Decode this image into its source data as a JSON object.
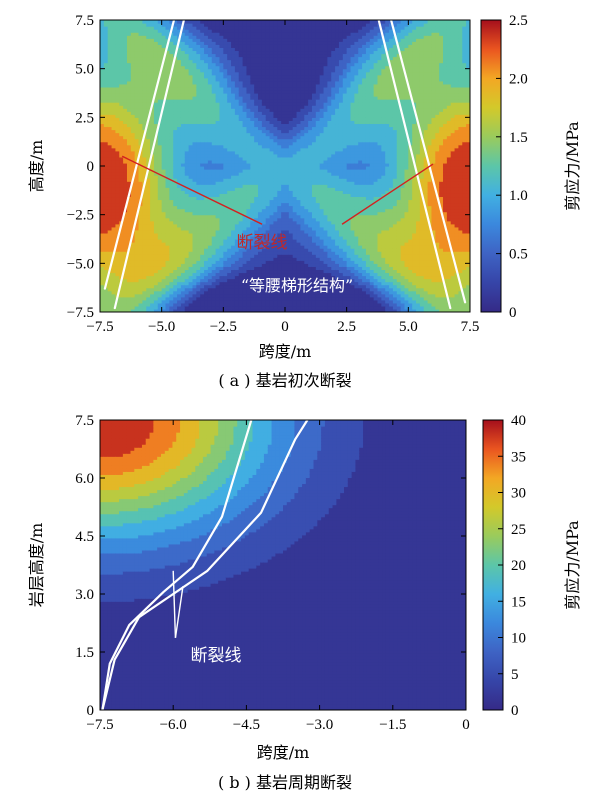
{
  "chart_data": [
    {
      "type": "heatmap",
      "caption": "( a ) 基岩初次断裂",
      "xlabel": "跨度/m",
      "ylabel": "高度/m",
      "colorbar_label": "剪应力/MPa",
      "xlim": [
        -7.5,
        7.5
      ],
      "ylim": [
        -7.5,
        7.5
      ],
      "x_ticks": [
        -7.5,
        -5.0,
        -2.5,
        0,
        2.5,
        5.0,
        7.5
      ],
      "x_tick_labels": [
        "−7.5",
        "−5.0",
        "−2.5",
        "0",
        "2.5",
        "5.0",
        "7.5"
      ],
      "y_ticks": [
        -7.5,
        -5.0,
        -2.5,
        0,
        2.5,
        5.0,
        7.5
      ],
      "y_tick_labels": [
        "−7.5",
        "−5.0",
        "−2.5",
        "0",
        "2.5",
        "5.0",
        "7.5"
      ],
      "colorbar_range": [
        0,
        2.5
      ],
      "colorbar_ticks": [
        0,
        0.5,
        1.0,
        1.5,
        2.0,
        2.5
      ],
      "colorbar_tick_labels": [
        "0",
        "0.5",
        "1.0",
        "1.5",
        "2.0",
        "2.5"
      ],
      "contour_levels": [
        0.2,
        0.4,
        0.6,
        0.75,
        0.95,
        1.15,
        1.35,
        1.55,
        1.75,
        1.95,
        2.2
      ],
      "sample_values": [
        {
          "x": -7.5,
          "y": -1.0,
          "value": 2.4
        },
        {
          "x": -6.0,
          "y": -1.0,
          "value": 1.9
        },
        {
          "x": -4.0,
          "y": 0.0,
          "value": 1.1
        },
        {
          "x": 0.0,
          "y": 4.0,
          "value": 0.5
        },
        {
          "x": 0.0,
          "y": -2.5,
          "value": 1.0
        },
        {
          "x": 0.0,
          "y": -7.0,
          "value": 0.1
        },
        {
          "x": 0.0,
          "y": 7.0,
          "value": 1.1
        },
        {
          "x": 7.5,
          "y": -1.0,
          "value": 2.4
        }
      ],
      "fracture_lines": [
        [
          [
            -6.9,
            -7.3
          ],
          [
            -4.1,
            7.5
          ]
        ],
        [
          [
            -7.3,
            -6.3
          ],
          [
            -4.5,
            7.5
          ]
        ],
        [
          [
            3.8,
            7.5
          ],
          [
            6.7,
            -7.3
          ]
        ],
        [
          [
            4.3,
            7.5
          ],
          [
            7.3,
            -7.0
          ]
        ]
      ],
      "annotations": [
        {
          "text": "断裂线",
          "x": -0.2,
          "y": -3.3,
          "pointers": [
            [
              -6.6,
              0.5
            ],
            [
              6.0,
              0.1
            ]
          ]
        },
        {
          "text": "“等腰梯形结构”",
          "x": 0.1,
          "y": -6.2
        }
      ]
    },
    {
      "type": "heatmap",
      "caption": "( b ) 基岩周期断裂",
      "xlabel": "跨度/m",
      "ylabel": "岩层高度/m",
      "colorbar_label": "剪应力/MPa",
      "xlim": [
        -7.5,
        0
      ],
      "ylim": [
        0,
        7.5
      ],
      "x_ticks": [
        -7.5,
        -6.0,
        -4.5,
        -3.0,
        -1.5,
        0
      ],
      "x_tick_labels": [
        "−7.5",
        "−6.0",
        "−4.5",
        "−3.0",
        "−1.5",
        "0"
      ],
      "y_ticks": [
        0,
        1.5,
        3.0,
        4.5,
        6.0,
        7.5
      ],
      "y_tick_labels": [
        "0",
        "1.5",
        "3.0",
        "4.5",
        "6.0",
        "7.5"
      ],
      "colorbar_range": [
        0,
        40
      ],
      "colorbar_ticks": [
        0,
        5,
        10,
        15,
        20,
        25,
        30,
        35,
        40
      ],
      "colorbar_tick_labels": [
        "0",
        "5",
        "10",
        "15",
        "20",
        "25",
        "30",
        "35",
        "40"
      ],
      "contour_levels": [
        3.5,
        7,
        10.5,
        14,
        17.5,
        21,
        24.5,
        28,
        32,
        36
      ],
      "sample_values": [
        {
          "x": -7.5,
          "y": 7.5,
          "value": 38
        },
        {
          "x": -7.5,
          "y": 5.0,
          "value": 12
        },
        {
          "x": -6.0,
          "y": 6.5,
          "value": 18
        },
        {
          "x": -3.0,
          "y": 7.0,
          "value": 2
        },
        {
          "x": -1.5,
          "y": 3.0,
          "value": 1
        }
      ],
      "fracture_lines": [
        [
          [
            -7.45,
            0.0
          ],
          [
            -7.3,
            1.2
          ],
          [
            -6.9,
            2.2
          ],
          [
            -6.2,
            3.05
          ],
          [
            -5.6,
            3.7
          ],
          [
            -5.0,
            5.0
          ],
          [
            -4.4,
            7.5
          ]
        ],
        [
          [
            -7.45,
            0.0
          ],
          [
            -7.2,
            1.3
          ],
          [
            -6.7,
            2.4
          ],
          [
            -6.0,
            3.0
          ],
          [
            -5.3,
            3.6
          ],
          [
            -4.2,
            5.1
          ],
          [
            -3.5,
            7.0
          ],
          [
            -3.25,
            7.5
          ]
        ]
      ],
      "annotations": [
        {
          "text": "断裂线",
          "x": -6.2,
          "y": 1.35,
          "pointers": [
            [
              -6.0,
              3.6
            ],
            [
              -5.8,
              3.2
            ]
          ]
        }
      ]
    }
  ]
}
